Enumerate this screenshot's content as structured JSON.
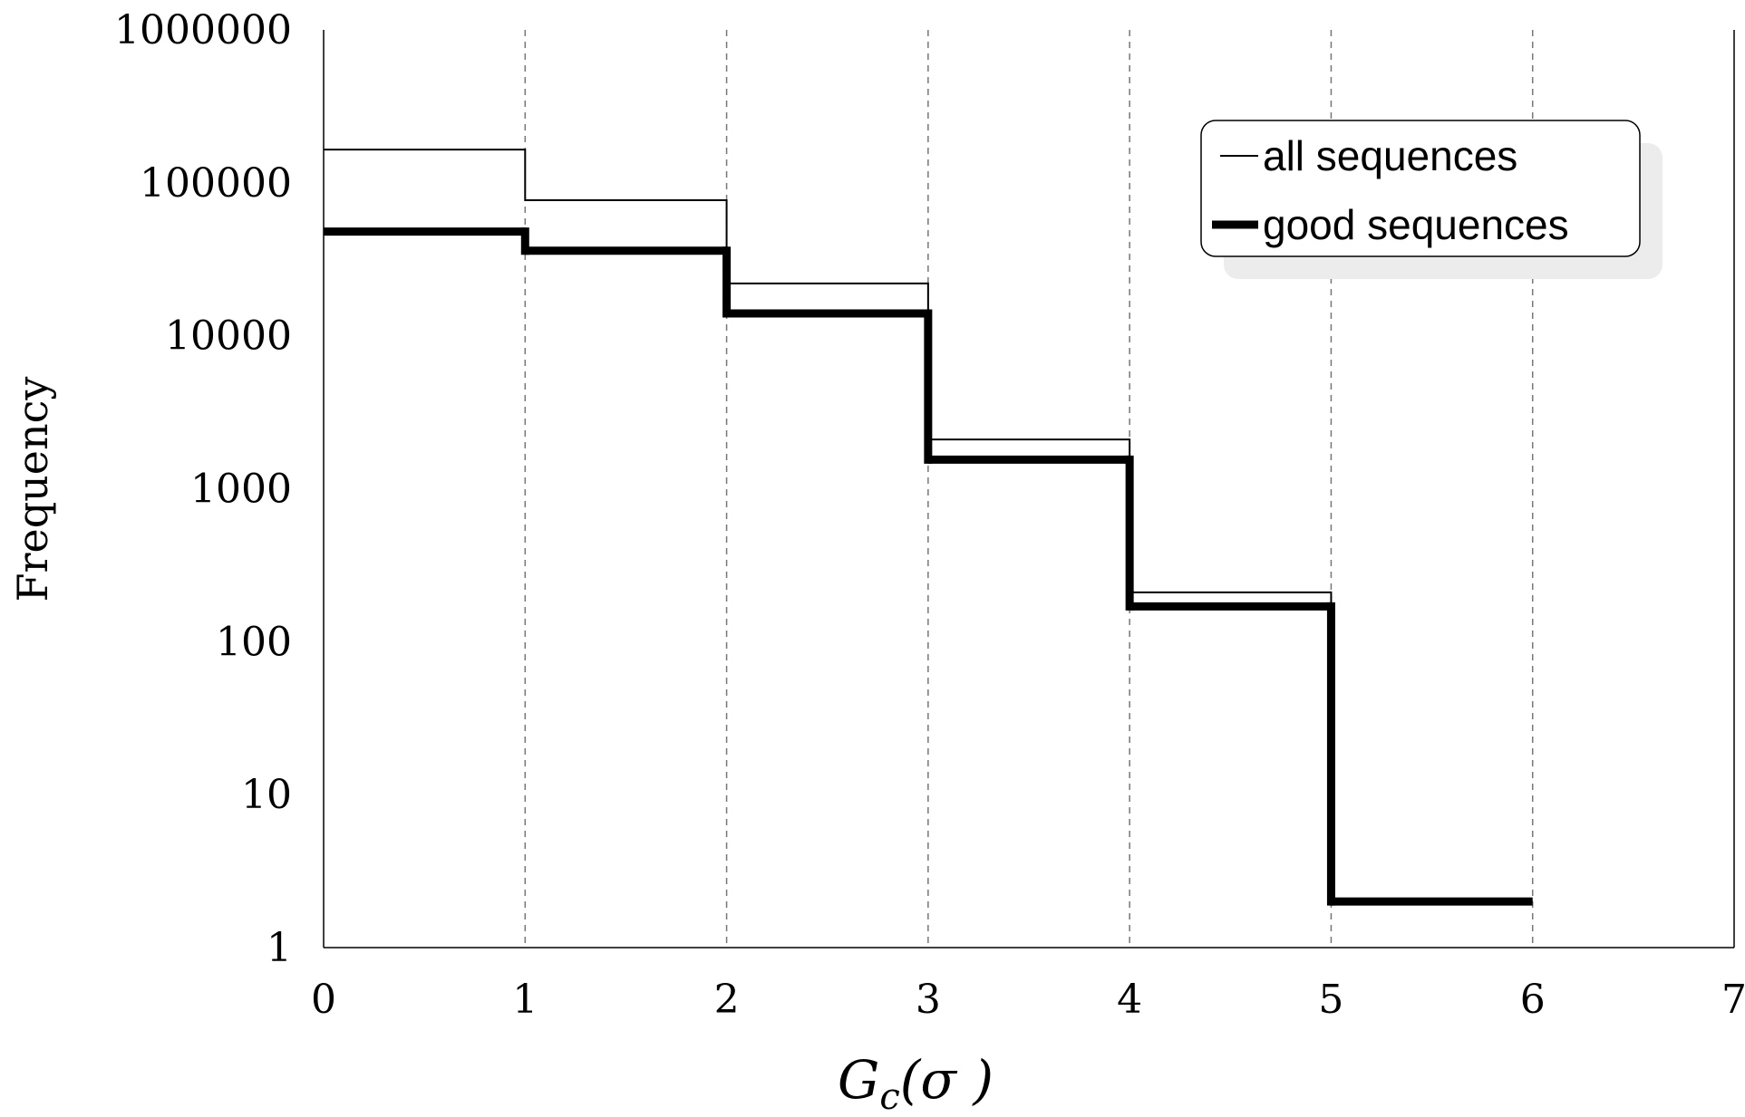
{
  "chart_data": {
    "type": "line",
    "step": true,
    "title": "",
    "xlabel": "G_c(σ )",
    "xlabel_parts": {
      "base": "G",
      "sub": "c",
      "arg": "(σ )"
    },
    "ylabel": "Frequency",
    "xlim": [
      0,
      7
    ],
    "ylim": [
      1,
      1000000
    ],
    "yscale": "log",
    "x_ticks": [
      "0",
      "1",
      "2",
      "3",
      "4",
      "5",
      "6",
      "7"
    ],
    "y_ticks": [
      "1",
      "10",
      "100",
      "1000",
      "10000",
      "100000",
      "1000000"
    ],
    "grid": "vertical dashed",
    "legend_position": "top-right",
    "series": [
      {
        "name": "all sequences",
        "style": "thin",
        "color": "#000000",
        "bins": [
          {
            "x0": 0,
            "x1": 1,
            "y": 165000
          },
          {
            "x0": 1,
            "x1": 2,
            "y": 77000
          },
          {
            "x0": 2,
            "x1": 3,
            "y": 22000
          },
          {
            "x0": 3,
            "x1": 4,
            "y": 2100
          },
          {
            "x0": 4,
            "x1": 5,
            "y": 210
          },
          {
            "x0": 5,
            "x1": 6,
            "y": 2
          }
        ]
      },
      {
        "name": "good sequences",
        "style": "thick",
        "color": "#000000",
        "bins": [
          {
            "x0": 0,
            "x1": 1,
            "y": 48000
          },
          {
            "x0": 1,
            "x1": 2,
            "y": 36000
          },
          {
            "x0": 2,
            "x1": 3,
            "y": 14000
          },
          {
            "x0": 3,
            "x1": 4,
            "y": 1550
          },
          {
            "x0": 4,
            "x1": 5,
            "y": 170
          },
          {
            "x0": 5,
            "x1": 6,
            "y": 2
          }
        ]
      }
    ]
  }
}
